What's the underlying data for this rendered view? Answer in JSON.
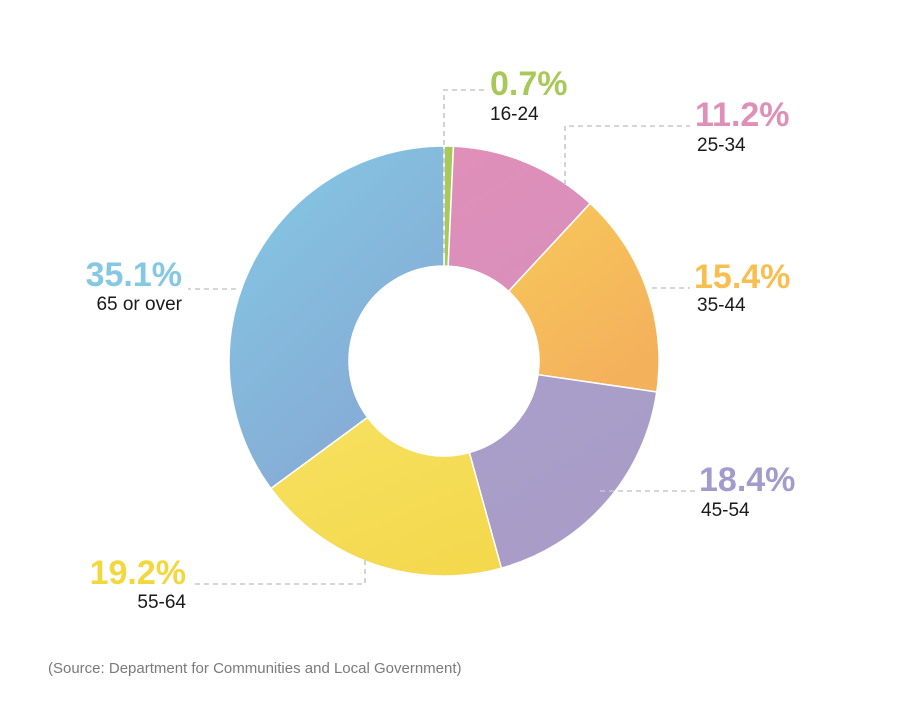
{
  "chart_data": {
    "type": "donut",
    "series": [
      {
        "values": [
          {
            "category": "16-24",
            "value": 0.7,
            "label": "0.7%",
            "color": "#a8c95a",
            "color_end": "#a8c95a"
          },
          {
            "category": "25-34",
            "value": 11.2,
            "label": "11.2%",
            "color": "#e08fb8",
            "color_end": "#d98fbc"
          },
          {
            "category": "35-44",
            "value": 15.4,
            "label": "15.4%",
            "color": "#f7c85a",
            "color_end": "#f4b15c"
          },
          {
            "category": "45-54",
            "value": 18.4,
            "label": "18.4%",
            "color": "#a89fc9",
            "color_end": "#a99cc8"
          },
          {
            "category": "55-64",
            "value": 19.2,
            "label": "19.2%",
            "color": "#f7e160",
            "color_end": "#f4d94f"
          },
          {
            "category": "65 or over",
            "value": 35.1,
            "label": "35.1%",
            "color": "#84c9e4",
            "color_end": "#86a9d4"
          }
        ]
      }
    ],
    "label_colors": {
      "16-24": "#a8c95a",
      "25-34": "#df90b8",
      "35-44": "#f6bf4f",
      "45-54": "#a29bcc",
      "55-64": "#f2d83e",
      "65 or over": "#84c8e2"
    },
    "start_angle_deg": 0,
    "direction": "clockwise",
    "legend": "none"
  },
  "source_note": "(Source: Department for Communities and Local Government)"
}
